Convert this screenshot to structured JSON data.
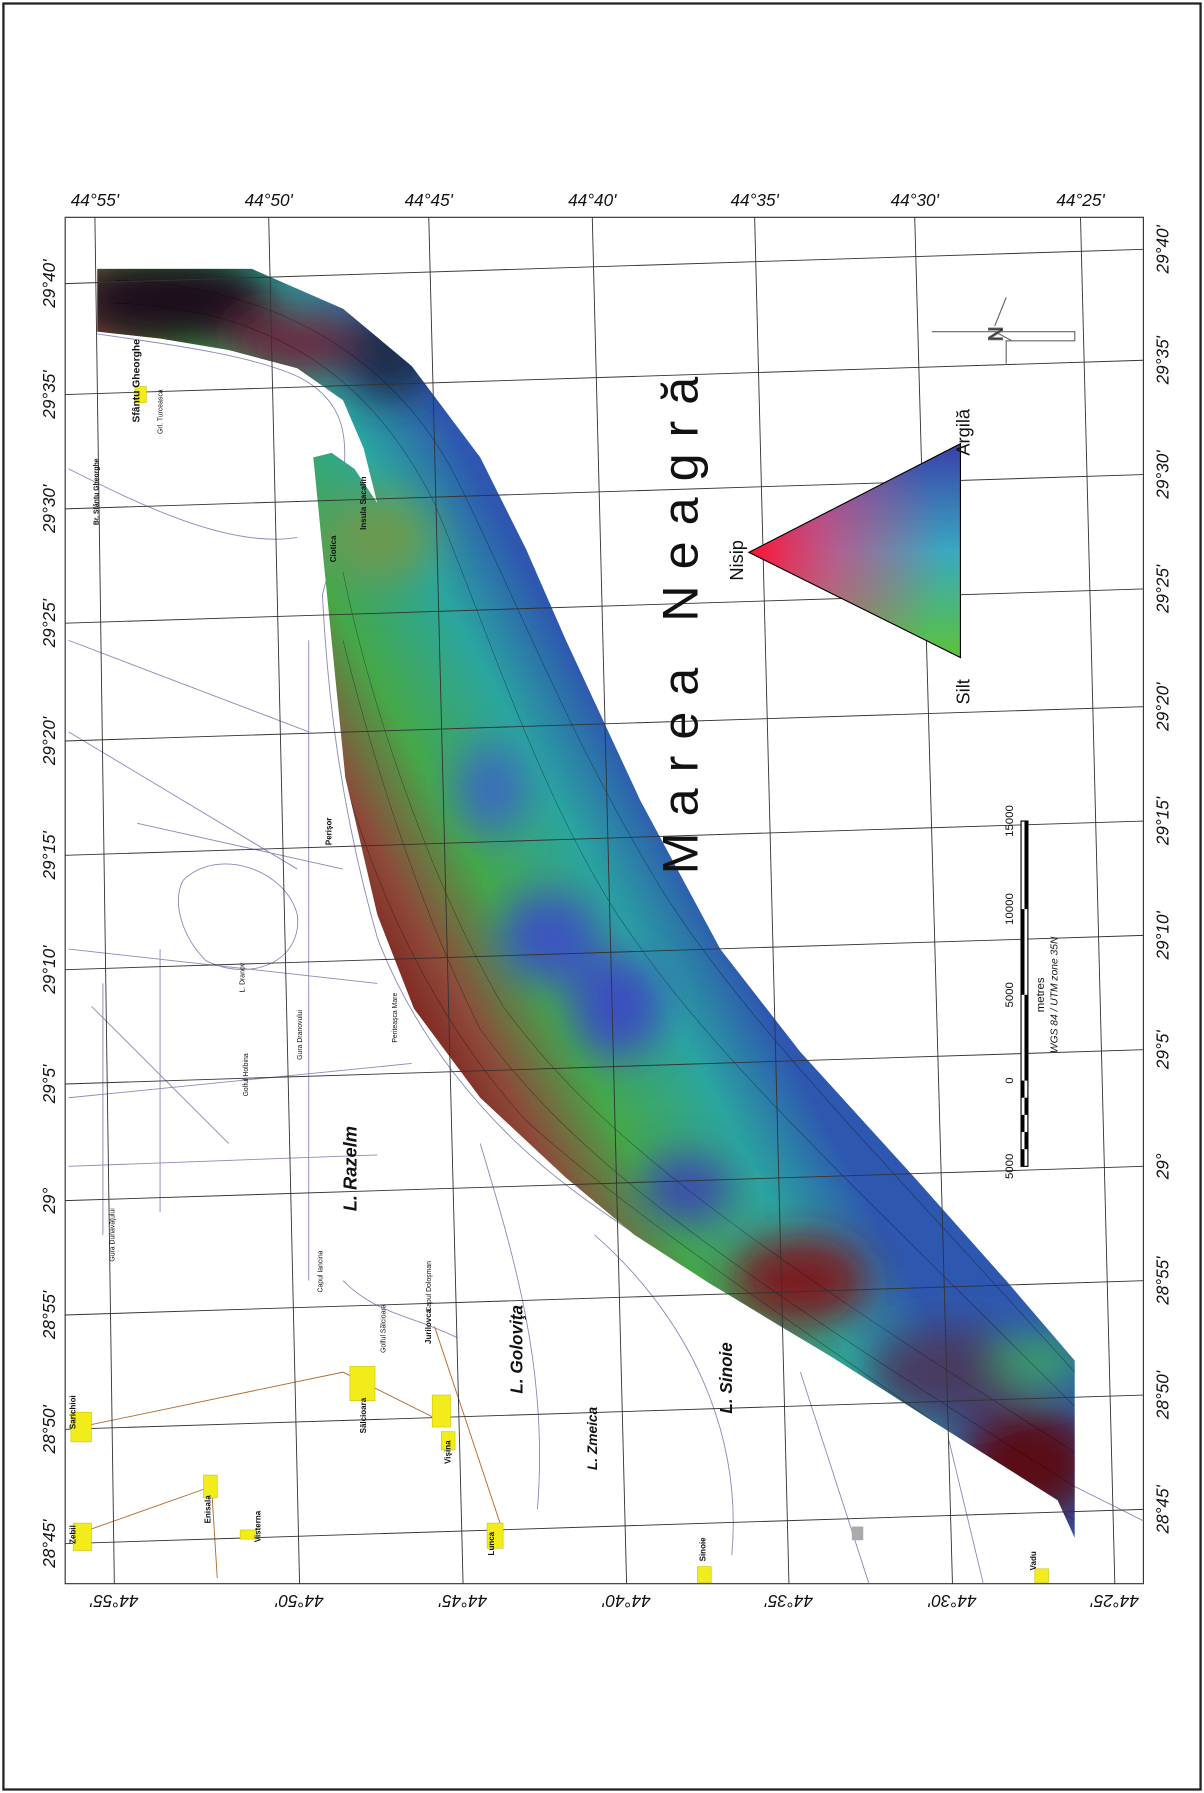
{
  "map": {
    "title": "Marea Neagră",
    "top_labels": [
      "44°55'",
      "44°50'",
      "44°45'",
      "44°40'",
      "44°35'",
      "44°30'",
      "44°25'"
    ],
    "bottom_labels": [
      "44°55'",
      "44°50'",
      "44°45'",
      "44°40'",
      "44°35'",
      "44°30'",
      "44°25'"
    ],
    "left_labels": [
      "29°40'",
      "29°35'",
      "29°30'",
      "29°25'",
      "29°20'",
      "29°15'",
      "29°10'",
      "29°5'",
      "29°",
      "28°55'",
      "28°50'",
      "28°45'"
    ],
    "right_labels": [
      "29°40'",
      "29°35'",
      "29°30'",
      "29°25'",
      "29°20'",
      "29°15'",
      "29°10'",
      "29°5'",
      "29°",
      "28°55'",
      "28°50'",
      "28°45'"
    ],
    "places": [
      {
        "label": "Sfântu Gheorghe"
      },
      {
        "label": "Insula Sacalin"
      },
      {
        "label": "Ciotica"
      },
      {
        "label": "Perişor"
      },
      {
        "label": "L. Dranov"
      },
      {
        "label": "Gura Dranovului"
      },
      {
        "label": "Golful Holbina"
      },
      {
        "label": "L. Razelm"
      },
      {
        "label": "Capul Iancina"
      },
      {
        "label": "Capul Doloşman"
      },
      {
        "label": "Golful Sălcioara"
      },
      {
        "label": "Jurilovca"
      },
      {
        "label": "Sălcioara"
      },
      {
        "label": "L. Goloviţa"
      },
      {
        "label": "L. Zmeica"
      },
      {
        "label": "L. Sinoie"
      },
      {
        "label": "Sarichioi"
      },
      {
        "label": "Enisala"
      },
      {
        "label": "Zebil"
      },
      {
        "label": "Visterna"
      },
      {
        "label": "Vişina"
      },
      {
        "label": "Lunca"
      },
      {
        "label": "Sinoie"
      },
      {
        "label": "Vadu"
      },
      {
        "label": "Periteaşca Mare"
      },
      {
        "label": "Gura Dunavăţului"
      },
      {
        "label": "Br. Sfântu Gheorghe"
      },
      {
        "label": "Grl. Turceasca"
      }
    ],
    "legend": {
      "vertices": [
        "Nisip",
        "Argilă",
        "Silt"
      ]
    },
    "scale": {
      "ticks": [
        "5000",
        "0",
        "5000",
        "10000",
        "15000"
      ],
      "unit": "metres",
      "projection": "WGS 84 / UTM zone 35N"
    }
  }
}
